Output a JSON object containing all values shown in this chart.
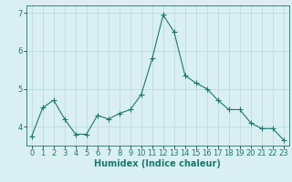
{
  "x": [
    0,
    1,
    2,
    3,
    4,
    5,
    6,
    7,
    8,
    9,
    10,
    11,
    12,
    13,
    14,
    15,
    16,
    17,
    18,
    19,
    20,
    21,
    22,
    23
  ],
  "y": [
    3.75,
    4.5,
    4.7,
    4.2,
    3.8,
    3.8,
    4.3,
    4.2,
    4.35,
    4.45,
    4.85,
    5.8,
    6.95,
    6.5,
    5.35,
    5.15,
    5.0,
    4.7,
    4.45,
    4.45,
    4.1,
    3.95,
    3.95,
    3.65
  ],
  "line_color": "#1a7a6e",
  "marker": "+",
  "marker_size": 4,
  "bg_color": "#d9eff2",
  "grid_color": "#b8d8d8",
  "xlabel": "Humidex (Indice chaleur)",
  "xlim": [
    -0.5,
    23.5
  ],
  "ylim": [
    3.5,
    7.2
  ],
  "yticks": [
    4,
    5,
    6,
    7
  ],
  "xticks": [
    0,
    1,
    2,
    3,
    4,
    5,
    6,
    7,
    8,
    9,
    10,
    11,
    12,
    13,
    14,
    15,
    16,
    17,
    18,
    19,
    20,
    21,
    22,
    23
  ],
  "label_fontsize": 7,
  "tick_fontsize": 6
}
